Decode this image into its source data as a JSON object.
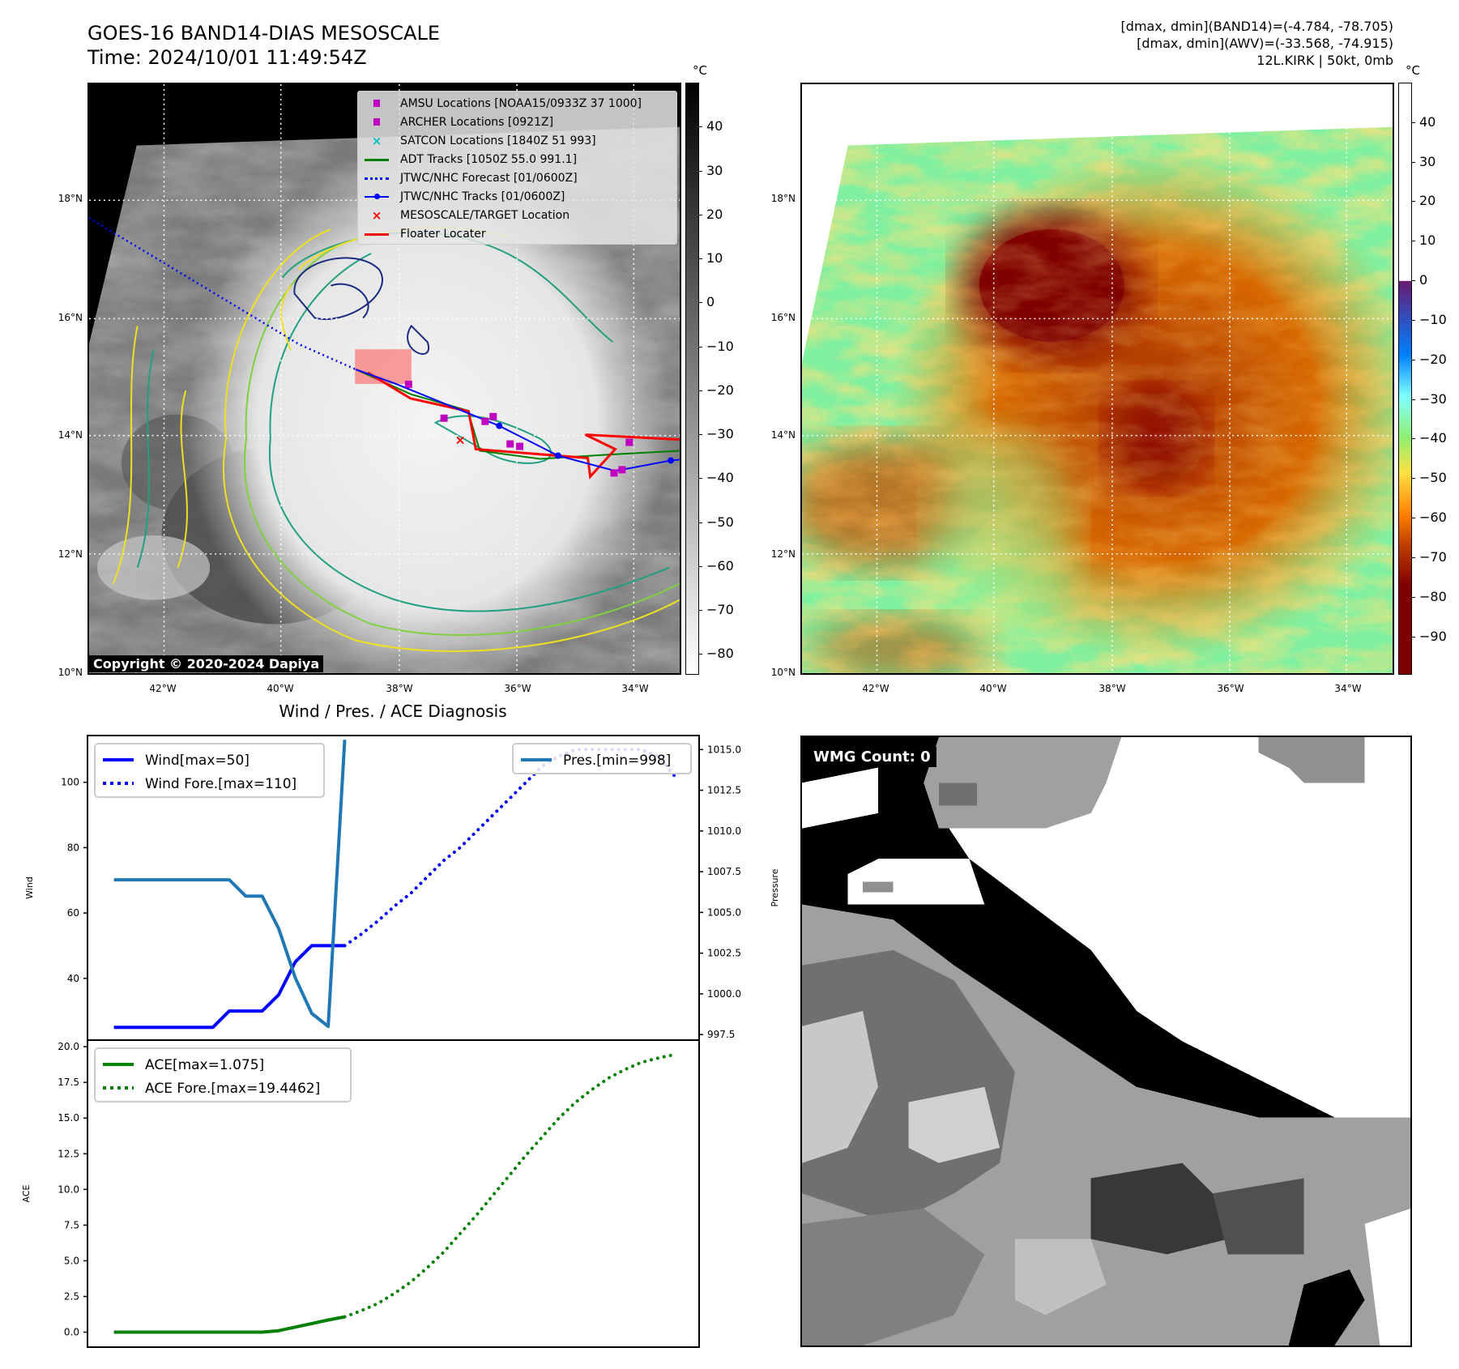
{
  "header": {
    "title_line1": "GOES-16 BAND14-DIAS MESOSCALE",
    "title_line2": "Time: 2024/10/01 11:49:54Z",
    "stats_line1": "[dmax, dmin](BAND14)=(-4.784, -78.705)",
    "stats_line2": "[dmax, dmin](AWV)=(-33.568, -74.915)",
    "stats_line3": "12L.KIRK | 50kt, 0mb"
  },
  "map_left": {
    "legend": [
      {
        "label": "AMSU Locations [NOAA15/0933Z 37 1000]",
        "marker": "square",
        "color": "#c000c0"
      },
      {
        "label": "ARCHER Locations [0921Z]",
        "marker": "square",
        "color": "#c000c0"
      },
      {
        "label": "SATCON Locations [1840Z 51 993]",
        "marker": "x",
        "color": "#00c0c0"
      },
      {
        "label": "ADT Tracks [1050Z 55.0 991.1]",
        "marker": "line",
        "color": "#008000"
      },
      {
        "label": "JTWC/NHC Forecast [01/0600Z]",
        "marker": "dotted",
        "color": "#0000ff"
      },
      {
        "label": "JTWC/NHC Tracks [01/0600Z]",
        "marker": "line-dot",
        "color": "#0000ff"
      },
      {
        "label": "MESOSCALE/TARGET Location",
        "marker": "x",
        "color": "#ff0000"
      },
      {
        "label": "Floater Locater",
        "marker": "line",
        "color": "#ff0000"
      }
    ],
    "copyright": "Copyright © 2020-2024 Dapiya",
    "colorbar": {
      "unit": "°C",
      "ticks": [
        "40",
        "30",
        "20",
        "10",
        "0",
        "−10",
        "−20",
        "−30",
        "−40",
        "−50",
        "−60",
        "−70",
        "−80"
      ],
      "range": [
        -84.7,
        50
      ]
    }
  },
  "map_right": {
    "colorbar": {
      "unit": "°C",
      "ticks": [
        "40",
        "30",
        "20",
        "10",
        "0",
        "−10",
        "−20",
        "−30",
        "−40",
        "−50",
        "−60",
        "−70",
        "−80",
        "−90"
      ],
      "range": [
        -99.7,
        50
      ]
    }
  },
  "axes": {
    "lat_labels": [
      "18°N",
      "16°N",
      "14°N",
      "12°N",
      "10°N"
    ],
    "lon_labels": [
      "42°W",
      "40°W",
      "38°W",
      "36°W",
      "34°W"
    ]
  },
  "diagnosis": {
    "title": "Wind / Pres. / ACE Diagnosis"
  },
  "wmg": {
    "label": "WMG Count: 0"
  },
  "chart_data": [
    {
      "type": "line",
      "title": "Wind / Pres. / ACE Diagnosis",
      "ylabel": "Wind",
      "ylabel_right": "Pressure",
      "xlim": [
        -1.6,
        35.5
      ],
      "ylim": [
        21.1,
        114.3
      ],
      "ylim_right": [
        997.16,
        1015.86
      ],
      "yticks": [
        "40",
        "60",
        "80",
        "100"
      ],
      "yticks_right": [
        "997.5",
        "1000.0",
        "1002.5",
        "1005.0",
        "1007.5",
        "1010.0",
        "1012.5",
        "1015.0"
      ],
      "legend_left": [
        "Wind[max=50]",
        "Wind Fore.[max=110]"
      ],
      "legend_right": [
        "Pres.[min=998]"
      ],
      "series": [
        {
          "name": "Wind[max=50]",
          "color": "#0000ff",
          "style": "solid",
          "x0": 0,
          "values": [
            25,
            25,
            25,
            25,
            25,
            25,
            25,
            30,
            30,
            30,
            35,
            45,
            50,
            50,
            50
          ]
        },
        {
          "name": "Wind Fore.[max=110]",
          "color": "#0000ff",
          "style": "dotted",
          "x0": 14,
          "values": [
            50,
            53.5,
            57.5,
            62,
            66,
            71,
            76,
            80,
            85,
            90,
            95,
            100,
            105,
            108,
            110,
            110,
            110,
            110,
            110,
            108,
            102
          ]
        },
        {
          "name": "Pres.[min=998]",
          "color": "#1f77b4",
          "style": "solid",
          "axis": "right",
          "x0": 0,
          "values": [
            1007,
            1007,
            1007,
            1007,
            1007,
            1007,
            1007,
            1007,
            1006,
            1006,
            1004,
            1001,
            998.8,
            998,
            1015.6
          ]
        }
      ]
    },
    {
      "type": "line",
      "ylabel": "ACE",
      "xlim": [
        -1.6,
        35.5
      ],
      "ylim": [
        -1.05,
        20.46
      ],
      "yticks": [
        "0.0",
        "2.5",
        "5.0",
        "7.5",
        "10.0",
        "12.5",
        "15.0",
        "17.5",
        "20.0"
      ],
      "legend": [
        "ACE[max=1.075]",
        "ACE Fore.[max=19.4462]"
      ],
      "series": [
        {
          "name": "ACE[max=1.075]",
          "color": "#008000",
          "style": "solid",
          "x0": 0,
          "values": [
            0,
            0,
            0,
            0,
            0,
            0,
            0,
            0,
            0,
            0,
            0.1,
            0.35,
            0.6,
            0.85,
            1.075
          ]
        },
        {
          "name": "ACE Fore.[max=19.4462]",
          "color": "#008000",
          "style": "dotted",
          "x0": 14,
          "values": [
            1.075,
            1.5,
            2.0,
            2.7,
            3.5,
            4.5,
            5.6,
            6.9,
            8.2,
            9.6,
            11.0,
            12.4,
            13.7,
            15.0,
            16.1,
            17.0,
            17.8,
            18.4,
            18.9,
            19.2,
            19.4462
          ]
        }
      ]
    }
  ]
}
